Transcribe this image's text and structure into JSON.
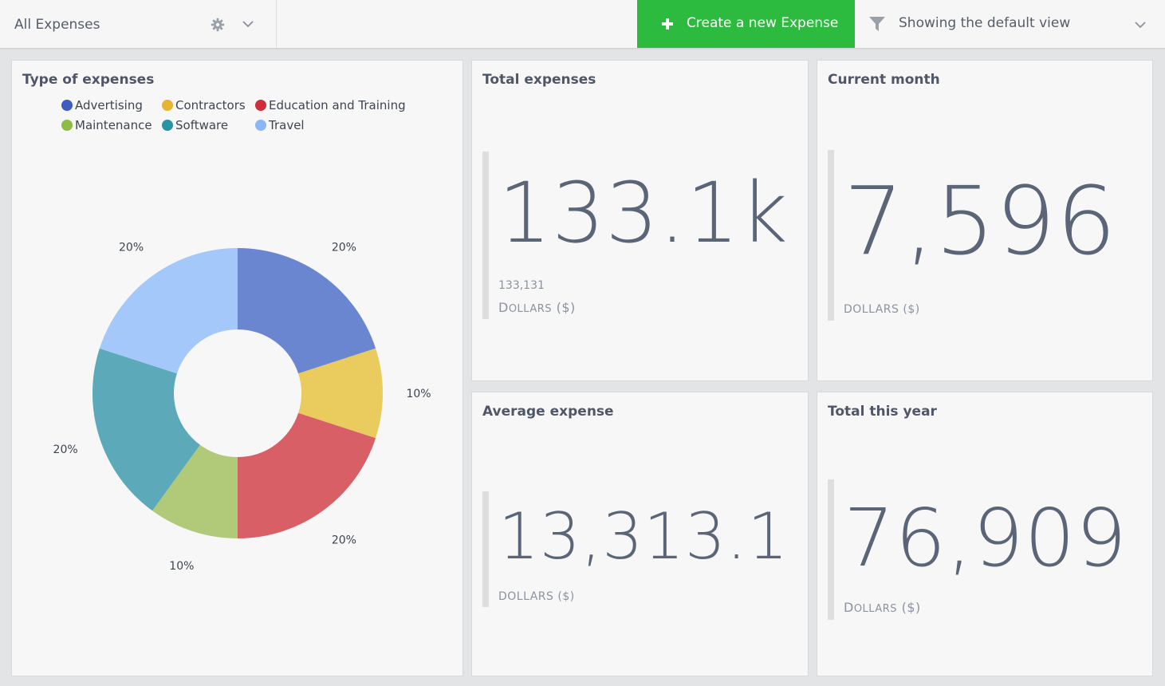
{
  "topbar": {
    "view_label": "All Expenses",
    "create_button_label": "Create a new Expense",
    "filter_label": "Showing the default view"
  },
  "cards": {
    "type_of_expenses": {
      "title": "Type of expenses"
    },
    "total_expenses": {
      "title": "Total expenses",
      "value": "133.1k",
      "raw": "133,131",
      "unit_first": "D",
      "unit_rest": "OLLARS",
      "unit_suffix": " ($)"
    },
    "current_month": {
      "title": "Current month",
      "value": "7,596",
      "unit": "DOLLARS ($)"
    },
    "average_expense": {
      "title": "Average expense",
      "value": "13,313.1",
      "unit": "DOLLARS ($)"
    },
    "total_this_year": {
      "title": "Total this year",
      "value": "76,909",
      "unit_first": "D",
      "unit_rest": "OLLARS",
      "unit_suffix": " ($)"
    }
  },
  "colors": {
    "accent_green": "#2dbb3f",
    "Advertising": "#6a86d1",
    "Contractors": "#e9cb5e",
    "Education and Training": "#d95f67",
    "Maintenance": "#b0ca79",
    "Software": "#5ca9ba",
    "Travel": "#a4c8fa"
  },
  "chart_data": {
    "type": "pie",
    "donut": true,
    "title": "Type of expenses",
    "legend_position": "top",
    "categories": [
      "Advertising",
      "Contractors",
      "Education and Training",
      "Maintenance",
      "Software",
      "Travel"
    ],
    "values": [
      20,
      10,
      20,
      10,
      20,
      20
    ],
    "labels": [
      "20%",
      "10%",
      "20%",
      "10%",
      "20%",
      "20%"
    ],
    "legend_colors": [
      "#3f5cbf",
      "#e5b430",
      "#cf2f3a",
      "#8fbc47",
      "#2b93a4",
      "#8ab8f7"
    ],
    "slice_colors": [
      "#6a86d1",
      "#e9cb5e",
      "#d95f67",
      "#b0ca79",
      "#5ca9ba",
      "#a4c8fa"
    ]
  }
}
